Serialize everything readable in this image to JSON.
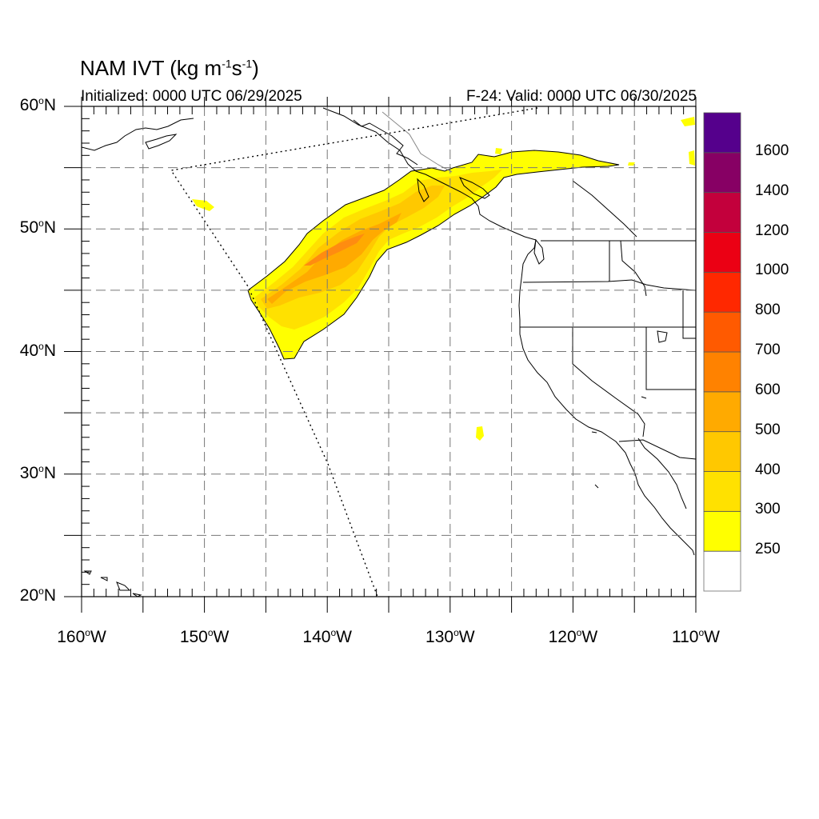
{
  "title": {
    "prefix": "NAM IVT (kg m",
    "exp1": "-1",
    "mid": "s",
    "exp2": "-1",
    "suffix": ")"
  },
  "subtitle_left": "Initialized: 0000 UTC 06/29/2025",
  "subtitle_right": "F-24: Valid: 0000 UTC 06/30/2025",
  "map": {
    "lon_range": [
      -160,
      -110
    ],
    "lat_range": [
      20,
      60
    ],
    "lat_labels": [
      {
        "lat": 60,
        "deg": "60",
        "hemi": "N"
      },
      {
        "lat": 50,
        "deg": "50",
        "hemi": "N"
      },
      {
        "lat": 40,
        "deg": "40",
        "hemi": "N"
      },
      {
        "lat": 30,
        "deg": "30",
        "hemi": "N"
      },
      {
        "lat": 20,
        "deg": "20",
        "hemi": "N"
      }
    ],
    "lon_labels": [
      {
        "lon": -160,
        "deg": "160",
        "hemi": "W"
      },
      {
        "lon": -150,
        "deg": "150",
        "hemi": "W"
      },
      {
        "lon": -140,
        "deg": "140",
        "hemi": "W"
      },
      {
        "lon": -130,
        "deg": "130",
        "hemi": "W"
      },
      {
        "lon": -120,
        "deg": "120",
        "hemi": "W"
      },
      {
        "lon": -110,
        "deg": "110",
        "hemi": "W"
      }
    ],
    "grid_dashed": true
  },
  "colorbar": {
    "levels": [
      {
        "label": "250",
        "color": "#ffff00"
      },
      {
        "label": "300",
        "color": "#ffe100"
      },
      {
        "label": "400",
        "color": "#ffc800"
      },
      {
        "label": "500",
        "color": "#ffaa00"
      },
      {
        "label": "600",
        "color": "#ff8200"
      },
      {
        "label": "700",
        "color": "#ff5a00"
      },
      {
        "label": "800",
        "color": "#ff2800"
      },
      {
        "label": "1000",
        "color": "#eb0014"
      },
      {
        "label": "1200",
        "color": "#c3003c"
      },
      {
        "label": "1400",
        "color": "#870064"
      },
      {
        "label": "1600",
        "color": "#55008c"
      }
    ],
    "below_color": "#ffffff"
  }
}
